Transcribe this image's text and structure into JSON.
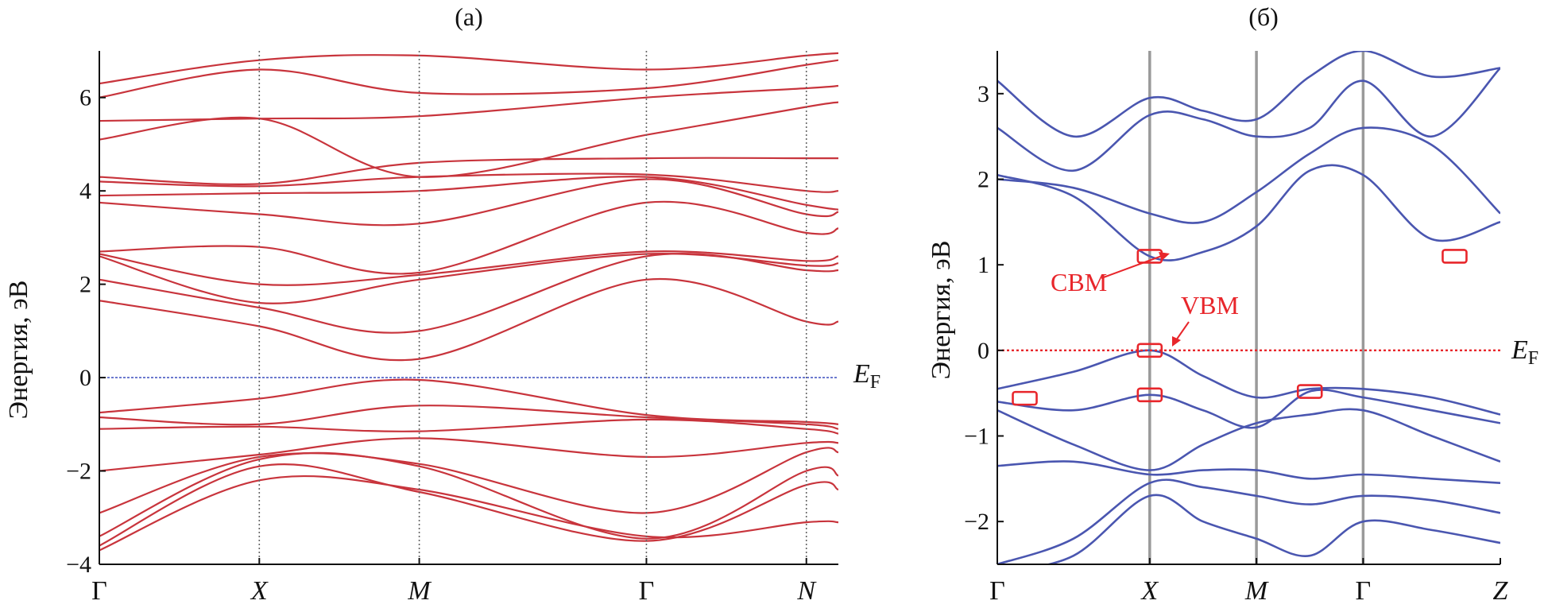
{
  "chart_data": [
    {
      "type": "line",
      "panel_label": "(а)",
      "title": "(а)",
      "xlabel": "",
      "ylabel": "Энергия, эВ",
      "ylim": [
        -4,
        7
      ],
      "yticks": [
        -4,
        -2,
        0,
        2,
        4,
        6
      ],
      "ytick_labels": [
        "−4",
        "−2",
        "0",
        "2",
        "4",
        "6"
      ],
      "kpoints": [
        {
          "label": "Γ",
          "x": 0.0
        },
        {
          "label": "X",
          "x": 1.0
        },
        {
          "label": "M",
          "x": 2.0
        },
        {
          "label": "Γ",
          "x": 3.42
        },
        {
          "label": "N",
          "x": 4.42
        }
      ],
      "xlim": [
        0,
        4.62
      ],
      "fermi_label": "E",
      "fermi_sub": "F",
      "fermi_level": 0,
      "band_color": "#c8343c",
      "fermi_color": "#4a5bc4",
      "series": [
        {
          "name": "b01",
          "values": [
            -3.7,
            -2.2,
            -2.4,
            -3.4,
            -3.1,
            -3.1
          ]
        },
        {
          "name": "b02",
          "values": [
            -3.6,
            -1.9,
            -2.45,
            -3.5,
            -2.3,
            -2.4
          ]
        },
        {
          "name": "b03",
          "values": [
            -3.4,
            -1.75,
            -1.9,
            -3.45,
            -2.0,
            -2.1
          ]
        },
        {
          "name": "b04",
          "values": [
            -2.9,
            -1.7,
            -1.85,
            -2.9,
            -1.6,
            -1.6
          ]
        },
        {
          "name": "b05",
          "values": [
            -2.0,
            -1.65,
            -1.3,
            -1.7,
            -1.4,
            -1.4
          ]
        },
        {
          "name": "b06",
          "values": [
            -1.1,
            -1.05,
            -1.15,
            -0.9,
            -1.1,
            -1.2
          ]
        },
        {
          "name": "b07",
          "values": [
            -0.85,
            -1.0,
            -0.6,
            -0.85,
            -1.0,
            -1.1
          ]
        },
        {
          "name": "b08",
          "values": [
            -0.75,
            -0.45,
            -0.05,
            -0.8,
            -0.95,
            -1.0
          ]
        },
        {
          "name": "c01",
          "values": [
            1.65,
            1.1,
            0.4,
            2.1,
            1.2,
            1.2
          ]
        },
        {
          "name": "c02",
          "values": [
            2.1,
            1.5,
            1.0,
            2.6,
            2.3,
            2.3
          ]
        },
        {
          "name": "c03",
          "values": [
            2.6,
            1.6,
            2.1,
            2.65,
            2.4,
            2.45
          ]
        },
        {
          "name": "c04",
          "values": [
            2.65,
            2.0,
            2.2,
            2.7,
            2.5,
            2.6
          ]
        },
        {
          "name": "c05",
          "values": [
            2.7,
            2.8,
            2.25,
            3.75,
            3.1,
            3.2
          ]
        },
        {
          "name": "c06",
          "values": [
            3.75,
            3.5,
            3.3,
            4.25,
            3.5,
            3.55
          ]
        },
        {
          "name": "c07",
          "values": [
            3.9,
            3.95,
            4.0,
            4.3,
            3.7,
            3.6
          ]
        },
        {
          "name": "c08",
          "values": [
            4.2,
            4.1,
            4.3,
            4.35,
            4.0,
            4.0
          ]
        },
        {
          "name": "c09",
          "values": [
            4.3,
            4.15,
            4.6,
            4.7,
            4.7,
            4.7
          ]
        },
        {
          "name": "c10",
          "values": [
            5.1,
            5.55,
            4.3,
            5.2,
            5.8,
            5.9
          ]
        },
        {
          "name": "c11",
          "values": [
            5.5,
            5.55,
            5.6,
            6.0,
            6.2,
            6.25
          ]
        },
        {
          "name": "c12",
          "values": [
            6.0,
            6.6,
            6.1,
            6.2,
            6.7,
            6.8
          ]
        },
        {
          "name": "c13",
          "values": [
            6.3,
            6.8,
            6.9,
            6.6,
            6.9,
            6.95
          ]
        }
      ]
    },
    {
      "type": "line",
      "panel_label": "(б)",
      "title": "(б)",
      "xlabel": "",
      "ylabel": "Энергия, эВ",
      "ylim": [
        -2.5,
        3.5
      ],
      "yticks": [
        -2,
        -1,
        0,
        1,
        2,
        3
      ],
      "ytick_labels": [
        "−2",
        "−1",
        "0",
        "1",
        "2",
        "3"
      ],
      "kpoints": [
        {
          "label": "Γ",
          "x": 0.0
        },
        {
          "label": "X",
          "x": 1.0
        },
        {
          "label": "M",
          "x": 1.7
        },
        {
          "label": "Γ",
          "x": 2.4
        },
        {
          "label": "Z",
          "x": 3.3
        }
      ],
      "xlim": [
        0,
        3.3
      ],
      "fermi_label": "E",
      "fermi_sub": "F",
      "fermi_level": 0,
      "band_color": "#4a56b0",
      "fermi_color": "#e8262b",
      "annotations": [
        {
          "text": "CBM",
          "target_x": 1.0,
          "target_y": 1.1
        },
        {
          "text": "VBM",
          "target_x": 1.0,
          "target_y": 0.0
        }
      ],
      "extrema_boxes": [
        {
          "x": 1.0,
          "y": 1.1
        },
        {
          "x": 3.0,
          "y": 1.1
        },
        {
          "x": 1.0,
          "y": 0.0
        },
        {
          "x": 0.18,
          "y": -0.56
        },
        {
          "x": 1.0,
          "y": -0.52
        },
        {
          "x": 2.05,
          "y": -0.48
        }
      ],
      "series": [
        {
          "name": "v01",
          "x": [
            0,
            0.5,
            1.0,
            1.35,
            1.7,
            2.05,
            2.4,
            2.85,
            3.3
          ],
          "values": [
            -0.45,
            -0.25,
            0.0,
            -0.3,
            -0.55,
            -0.45,
            -0.45,
            -0.55,
            -0.75
          ]
        },
        {
          "name": "v02",
          "x": [
            0,
            0.5,
            1.0,
            1.35,
            1.7,
            2.05,
            2.4,
            2.85,
            3.3
          ],
          "values": [
            -0.6,
            -0.7,
            -0.52,
            -0.7,
            -0.9,
            -0.48,
            -0.55,
            -0.7,
            -0.85
          ]
        },
        {
          "name": "v03",
          "x": [
            0,
            0.5,
            1.0,
            1.35,
            1.7,
            2.05,
            2.4,
            2.85,
            3.3
          ],
          "values": [
            -0.7,
            -1.1,
            -1.4,
            -1.1,
            -0.85,
            -0.75,
            -0.7,
            -1.0,
            -1.3
          ]
        },
        {
          "name": "v04",
          "x": [
            0,
            0.5,
            1.0,
            1.35,
            1.7,
            2.05,
            2.4,
            2.85,
            3.3
          ],
          "values": [
            -1.35,
            -1.3,
            -1.45,
            -1.4,
            -1.4,
            -1.5,
            -1.45,
            -1.5,
            -1.55
          ]
        },
        {
          "name": "v05",
          "x": [
            0,
            0.5,
            1.0,
            1.35,
            1.7,
            2.05,
            2.4,
            2.85,
            3.3
          ],
          "values": [
            -2.5,
            -2.2,
            -1.55,
            -1.6,
            -1.7,
            -1.8,
            -1.7,
            -1.75,
            -1.9
          ]
        },
        {
          "name": "v06",
          "x": [
            0,
            0.5,
            1.0,
            1.35,
            1.7,
            2.05,
            2.4,
            2.85,
            3.3
          ],
          "values": [
            -2.6,
            -2.4,
            -1.7,
            -2.0,
            -2.2,
            -2.4,
            -2.0,
            -2.1,
            -2.25
          ]
        },
        {
          "name": "c01",
          "x": [
            0,
            0.5,
            1.0,
            1.35,
            1.7,
            2.05,
            2.4,
            2.85,
            3.3
          ],
          "values": [
            2.05,
            1.8,
            1.1,
            1.15,
            1.45,
            2.1,
            2.05,
            1.3,
            1.5
          ]
        },
        {
          "name": "c02",
          "x": [
            0,
            0.5,
            1.0,
            1.35,
            1.7,
            2.05,
            2.4,
            2.85,
            3.3
          ],
          "values": [
            2.0,
            1.9,
            1.6,
            1.5,
            1.85,
            2.3,
            2.6,
            2.4,
            1.6
          ]
        },
        {
          "name": "c03",
          "x": [
            0,
            0.5,
            1.0,
            1.35,
            1.7,
            2.05,
            2.4,
            2.85,
            3.3
          ],
          "values": [
            2.6,
            2.1,
            2.75,
            2.7,
            2.5,
            2.6,
            3.15,
            2.5,
            3.3
          ]
        },
        {
          "name": "c04",
          "x": [
            0,
            0.5,
            1.0,
            1.35,
            1.7,
            2.05,
            2.4,
            2.85,
            3.3
          ],
          "values": [
            3.15,
            2.5,
            2.95,
            2.8,
            2.7,
            3.2,
            3.5,
            3.2,
            3.3
          ]
        }
      ]
    }
  ]
}
